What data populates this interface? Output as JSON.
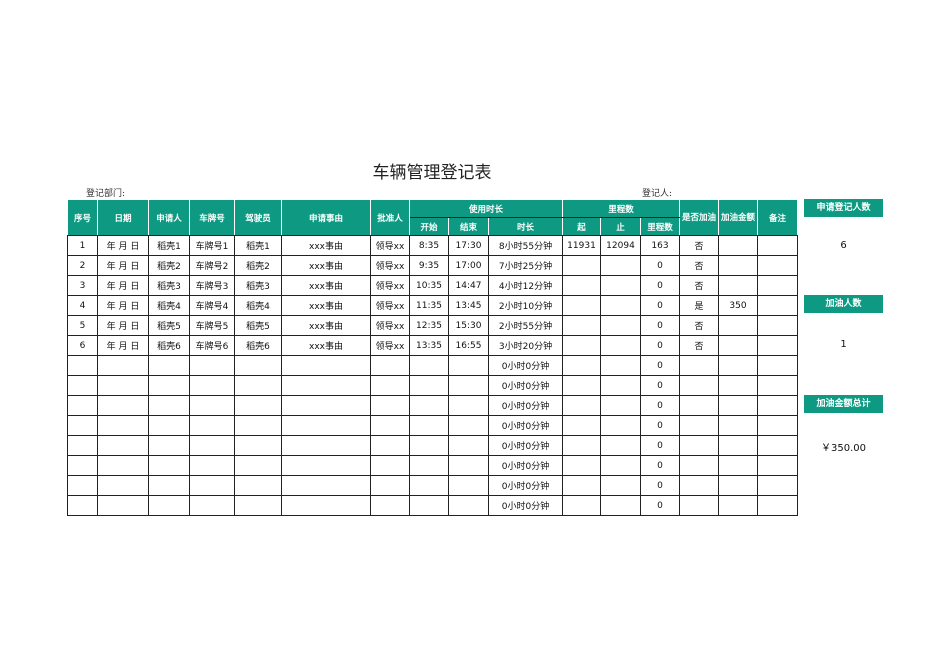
{
  "title": "车辆管理登记表",
  "dept_label": "登记部门:",
  "registrar_label": "登记人:",
  "headers": {
    "seq": "序号",
    "date": "日期",
    "applicant": "申请人",
    "plate": "车牌号",
    "driver": "驾驶员",
    "reason": "申请事由",
    "approver": "批准人",
    "usage": "使用时长",
    "start": "开始",
    "end": "结束",
    "duration": "时长",
    "mileage": "里程数",
    "from": "起",
    "to": "止",
    "distance": "里程数",
    "refuel": "是否加油",
    "amount": "加油金额",
    "remark": "备注"
  },
  "rows": [
    [
      "1",
      "年 月 日",
      "稻壳1",
      "车牌号1",
      "稻壳1",
      "xxx事由",
      "领导xx",
      "8:35",
      "17:30",
      "8小时55分钟",
      "11931",
      "12094",
      "163",
      "否",
      "",
      ""
    ],
    [
      "2",
      "年 月 日",
      "稻壳2",
      "车牌号2",
      "稻壳2",
      "xxx事由",
      "领导xx",
      "9:35",
      "17:00",
      "7小时25分钟",
      "",
      "",
      "0",
      "否",
      "",
      ""
    ],
    [
      "3",
      "年 月 日",
      "稻壳3",
      "车牌号3",
      "稻壳3",
      "xxx事由",
      "领导xx",
      "10:35",
      "14:47",
      "4小时12分钟",
      "",
      "",
      "0",
      "否",
      "",
      ""
    ],
    [
      "4",
      "年 月 日",
      "稻壳4",
      "车牌号4",
      "稻壳4",
      "xxx事由",
      "领导xx",
      "11:35",
      "13:45",
      "2小时10分钟",
      "",
      "",
      "0",
      "是",
      "350",
      ""
    ],
    [
      "5",
      "年 月 日",
      "稻壳5",
      "车牌号5",
      "稻壳5",
      "xxx事由",
      "领导xx",
      "12:35",
      "15:30",
      "2小时55分钟",
      "",
      "",
      "0",
      "否",
      "",
      ""
    ],
    [
      "6",
      "年 月 日",
      "稻壳6",
      "车牌号6",
      "稻壳6",
      "xxx事由",
      "领导xx",
      "13:35",
      "16:55",
      "3小时20分钟",
      "",
      "",
      "0",
      "否",
      "",
      ""
    ],
    [
      "",
      "",
      "",
      "",
      "",
      "",
      "",
      "",
      "",
      "0小时0分钟",
      "",
      "",
      "0",
      "",
      "",
      ""
    ],
    [
      "",
      "",
      "",
      "",
      "",
      "",
      "",
      "",
      "",
      "0小时0分钟",
      "",
      "",
      "0",
      "",
      "",
      ""
    ],
    [
      "",
      "",
      "",
      "",
      "",
      "",
      "",
      "",
      "",
      "0小时0分钟",
      "",
      "",
      "0",
      "",
      "",
      ""
    ],
    [
      "",
      "",
      "",
      "",
      "",
      "",
      "",
      "",
      "",
      "0小时0分钟",
      "",
      "",
      "0",
      "",
      "",
      ""
    ],
    [
      "",
      "",
      "",
      "",
      "",
      "",
      "",
      "",
      "",
      "0小时0分钟",
      "",
      "",
      "0",
      "",
      "",
      ""
    ],
    [
      "",
      "",
      "",
      "",
      "",
      "",
      "",
      "",
      "",
      "0小时0分钟",
      "",
      "",
      "0",
      "",
      "",
      ""
    ],
    [
      "",
      "",
      "",
      "",
      "",
      "",
      "",
      "",
      "",
      "0小时0分钟",
      "",
      "",
      "0",
      "",
      "",
      ""
    ],
    [
      "",
      "",
      "",
      "",
      "",
      "",
      "",
      "",
      "",
      "0小时0分钟",
      "",
      "",
      "0",
      "",
      "",
      ""
    ]
  ],
  "summary": {
    "applicants_label": "申请登记人数",
    "applicants_value": "6",
    "refuel_count_label": "加油人数",
    "refuel_count_value": "1",
    "refuel_total_label": "加油金额总计",
    "refuel_total_value": "￥350.00"
  },
  "colors": {
    "header": "#0e9a82"
  }
}
